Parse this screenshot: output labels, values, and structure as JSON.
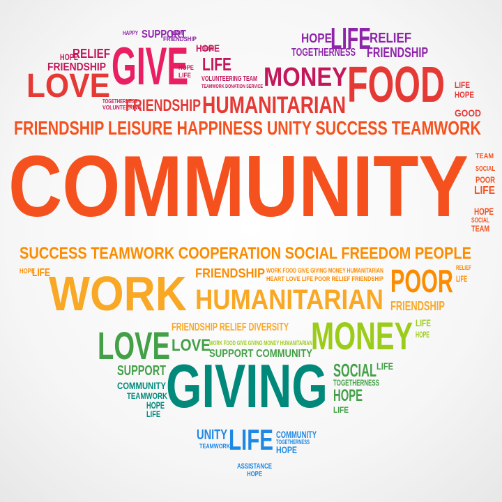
{
  "colors": {
    "magenta": "#c2185b",
    "pink": "#e91e63",
    "purple": "#8e24aa",
    "red": "#e53935",
    "red_orange": "#f4511e",
    "orange": "#fb8c00",
    "amber": "#f9a825",
    "yellow_green": "#9ccc1a",
    "green": "#43a047",
    "teal": "#00897b",
    "blue": "#1e88e5"
  },
  "words": [
    {
      "text": "SUPPORT",
      "color": "purple"
    },
    {
      "text": "TEAM",
      "color": "purple"
    },
    {
      "text": "FRIENDSHIP",
      "color": "purple"
    },
    {
      "text": "HAPPY",
      "color": "purple"
    },
    {
      "text": "HOPE",
      "color": "magenta"
    },
    {
      "text": "RELIEF",
      "color": "magenta"
    },
    {
      "text": "FRIENDSHIP",
      "color": "magenta"
    },
    {
      "text": "GIVE",
      "color": "pink"
    },
    {
      "text": "LOVE",
      "color": "red"
    },
    {
      "text": "HOPE",
      "color": "magenta"
    },
    {
      "text": "LIFE",
      "color": "magenta"
    },
    {
      "text": "TEAM",
      "color": "magenta"
    },
    {
      "text": "HOPE",
      "color": "magenta"
    },
    {
      "text": "LIFE",
      "color": "magenta"
    },
    {
      "text": "VOLUNTEERING TEAM",
      "color": "magenta"
    },
    {
      "text": "TEAMWORK DONATION SERVICE",
      "color": "magenta"
    },
    {
      "text": "TOGETHERNESS",
      "color": "magenta"
    },
    {
      "text": "VOLUNTEERING",
      "color": "magenta"
    },
    {
      "text": "HOPE",
      "color": "purple"
    },
    {
      "text": "LIFE",
      "color": "purple"
    },
    {
      "text": "RELIEF",
      "color": "purple"
    },
    {
      "text": "TOGETHERNESS",
      "color": "purple"
    },
    {
      "text": "FRIENDSHIP",
      "color": "purple"
    },
    {
      "text": "MONEY",
      "color": "magenta"
    },
    {
      "text": "FOOD",
      "color": "red"
    },
    {
      "text": "FRIENDSHIP",
      "color": "red"
    },
    {
      "text": "HUMANITARIAN",
      "color": "red"
    },
    {
      "text": "LIFE",
      "color": "red"
    },
    {
      "text": "HOPE",
      "color": "red"
    },
    {
      "text": "GOOD",
      "color": "red"
    },
    {
      "text": "FRIENDSHIP  LEISURE  HAPPINESS  UNITY  SUCCESS  TEAMWORK",
      "color": "red_orange"
    },
    {
      "text": "COMMUNITY",
      "color": "red_orange"
    },
    {
      "text": "TEAM",
      "color": "red_orange"
    },
    {
      "text": "SOCIAL",
      "color": "red_orange"
    },
    {
      "text": "POOR",
      "color": "red_orange"
    },
    {
      "text": "LIFE",
      "color": "red_orange"
    },
    {
      "text": "HOPE",
      "color": "red_orange"
    },
    {
      "text": "SOCIAL",
      "color": "red_orange"
    },
    {
      "text": "TEAM",
      "color": "red_orange"
    },
    {
      "text": "SUCCESS  TEAMWORK  COOPERATION  SOCIAL  FREEDOM  PEOPLE",
      "color": "orange"
    },
    {
      "text": "HOPE",
      "color": "orange"
    },
    {
      "text": "LIFE",
      "color": "orange"
    },
    {
      "text": "WORK",
      "color": "amber"
    },
    {
      "text": "FRIENDSHIP",
      "color": "orange"
    },
    {
      "text": "WORK FOOD GIVE GIVING MONEY HUMANITARIAN",
      "color": "orange"
    },
    {
      "text": "HEART LOVE LIFE POOR RELIEF FRIENDSHIP",
      "color": "orange"
    },
    {
      "text": "POOR",
      "color": "orange"
    },
    {
      "text": "RELIEF",
      "color": "orange"
    },
    {
      "text": "LIFE",
      "color": "orange"
    },
    {
      "text": "HUMANITARIAN",
      "color": "amber"
    },
    {
      "text": "FRIENDSHIP",
      "color": "amber"
    },
    {
      "text": "FRIENDSHIP RELIEF DIVERSITY",
      "color": "amber"
    },
    {
      "text": "LOVE",
      "color": "green"
    },
    {
      "text": "LOVE",
      "color": "green"
    },
    {
      "text": "WORK FOOD GIVE GIVING MONEY HUMANITARIAN",
      "color": "yellow_green"
    },
    {
      "text": "SUPPORT COMMUNITY",
      "color": "green"
    },
    {
      "text": "MONEY",
      "color": "yellow_green"
    },
    {
      "text": "LIFE",
      "color": "yellow_green"
    },
    {
      "text": "HOPE",
      "color": "yellow_green"
    },
    {
      "text": "SUPPORT",
      "color": "green"
    },
    {
      "text": "COMMUNITY",
      "color": "teal"
    },
    {
      "text": "TEAMWORK",
      "color": "teal"
    },
    {
      "text": "HOPE",
      "color": "teal"
    },
    {
      "text": "LIFE",
      "color": "teal"
    },
    {
      "text": "GIVING",
      "color": "teal"
    },
    {
      "text": "SOCIAL",
      "color": "green"
    },
    {
      "text": "LIFE",
      "color": "green"
    },
    {
      "text": "TOGETHERNESS",
      "color": "green"
    },
    {
      "text": "HOPE",
      "color": "green"
    },
    {
      "text": "LIFE",
      "color": "green"
    },
    {
      "text": "UNITY",
      "color": "blue"
    },
    {
      "text": "LIFE",
      "color": "blue"
    },
    {
      "text": "COMMUNITY",
      "color": "blue"
    },
    {
      "text": "TOGETHERNESS",
      "color": "blue"
    },
    {
      "text": "HOPE",
      "color": "blue"
    },
    {
      "text": "TEAMWORK",
      "color": "blue"
    },
    {
      "text": "ASSISTANCE",
      "color": "blue"
    },
    {
      "text": "HOPE",
      "color": "blue"
    }
  ]
}
